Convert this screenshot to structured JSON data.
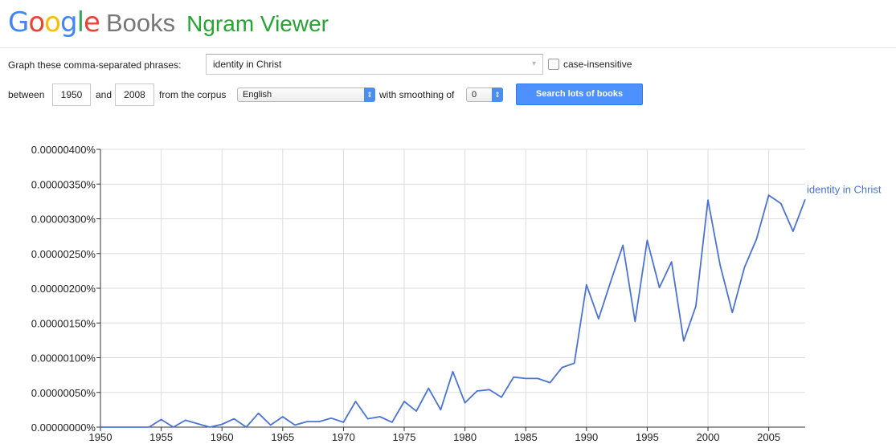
{
  "header": {
    "logo_letters": [
      "G",
      "o",
      "o",
      "g",
      "l",
      "e"
    ],
    "logo_colors": [
      "#4285f4",
      "#ea4335",
      "#fbbc05",
      "#4285f4",
      "#34a853",
      "#ea4335"
    ],
    "books": "Books",
    "ngram": "Ngram Viewer"
  },
  "query": {
    "label": "Graph these comma-separated phrases:",
    "value": "identity in Christ",
    "case_label": "case-insensitive"
  },
  "range": {
    "between": "between",
    "start": "1950",
    "and": "and",
    "end": "2008",
    "corpus_label": "from the corpus",
    "corpus": "English",
    "smoothing_label": "with smoothing of",
    "smoothing": "0",
    "search_button": "Search lots of books"
  },
  "chart_data": {
    "type": "line",
    "x": [
      1950,
      1951,
      1952,
      1953,
      1954,
      1955,
      1956,
      1957,
      1958,
      1959,
      1960,
      1961,
      1962,
      1963,
      1964,
      1965,
      1966,
      1967,
      1968,
      1969,
      1970,
      1971,
      1972,
      1973,
      1974,
      1975,
      1976,
      1977,
      1978,
      1979,
      1980,
      1981,
      1982,
      1983,
      1984,
      1985,
      1986,
      1987,
      1988,
      1989,
      1990,
      1991,
      1992,
      1993,
      1994,
      1995,
      1996,
      1997,
      1998,
      1999,
      2000,
      2001,
      2002,
      2003,
      2004,
      2005,
      2006,
      2007,
      2008
    ],
    "series": [
      {
        "name": "identity in Christ",
        "color": "#4a73d6",
        "values": [
          0,
          0,
          0,
          0,
          0,
          0.11,
          0,
          0.1,
          0.05,
          0,
          0.04,
          0.12,
          0,
          0.2,
          0.03,
          0.15,
          0.03,
          0.08,
          0.08,
          0.13,
          0.07,
          0.37,
          0.12,
          0.15,
          0.07,
          0.37,
          0.23,
          0.56,
          0.25,
          0.8,
          0.35,
          0.52,
          0.54,
          0.43,
          0.72,
          0.7,
          0.7,
          0.64,
          0.86,
          0.92,
          2.05,
          1.56,
          2.1,
          2.62,
          1.52,
          2.69,
          2.01,
          2.38,
          1.24,
          1.74,
          3.27,
          2.33,
          1.65,
          2.3,
          2.71,
          3.34,
          3.22,
          2.82,
          3.28
        ]
      }
    ],
    "y_unit_note": "values in units of 0.0000001%",
    "y_ticks": [
      "0.00000000%",
      "0.00000050%",
      "0.00000100%",
      "0.00000150%",
      "0.00000200%",
      "0.00000250%",
      "0.00000300%",
      "0.00000350%",
      "0.00000400%"
    ],
    "x_ticks": [
      "1950",
      "1955",
      "1960",
      "1965",
      "1970",
      "1975",
      "1980",
      "1985",
      "1990",
      "1995",
      "2000",
      "2005"
    ],
    "xlim": [
      1950,
      2008
    ],
    "ylim": [
      0,
      4
    ],
    "grid": true,
    "legend": "right-end label"
  }
}
